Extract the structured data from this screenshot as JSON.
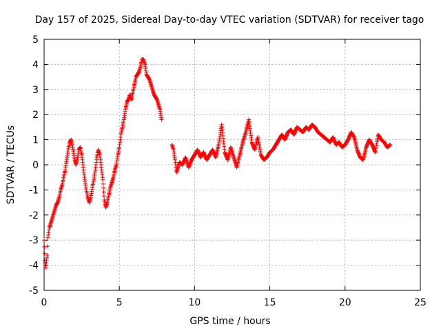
{
  "chart_data": {
    "type": "scatter",
    "title": "Day 157 of 2025, Sidereal Day-to-day VTEC variation (SDTVAR) for receiver tago",
    "xlabel": "GPS time / hours",
    "ylabel": "SDTVAR / TECUs",
    "xlim": [
      0,
      25
    ],
    "ylim": [
      -5,
      5
    ],
    "xticks": [
      0,
      5,
      10,
      15,
      20,
      25
    ],
    "yticks": [
      -5,
      -4,
      -3,
      -2,
      -1,
      0,
      1,
      2,
      3,
      4,
      5
    ],
    "xtick_labels": [
      "0",
      "5",
      "10",
      "15",
      "20",
      "25"
    ],
    "ytick_labels": [
      "-5",
      "-4",
      "-3",
      "-2",
      "-1",
      "0",
      "1",
      "2",
      "3",
      "4",
      "5"
    ],
    "grid": true,
    "marker": "+",
    "series_color": "#ff0000",
    "series": [
      {
        "name": "SDTVAR",
        "x": [
          0.0,
          0.05,
          0.1,
          0.15,
          0.2,
          0.25,
          0.3,
          0.35,
          0.4,
          0.5,
          0.6,
          0.7,
          0.8,
          0.9,
          1.0,
          1.1,
          1.2,
          1.3,
          1.4,
          1.5,
          1.6,
          1.7,
          1.8,
          1.9,
          2.0,
          2.1,
          2.2,
          2.3,
          2.4,
          2.5,
          2.6,
          2.7,
          2.8,
          2.9,
          3.0,
          3.1,
          3.2,
          3.3,
          3.4,
          3.5,
          3.6,
          3.7,
          3.8,
          3.9,
          4.0,
          4.1,
          4.2,
          4.3,
          4.4,
          4.5,
          4.6,
          4.7,
          4.8,
          4.9,
          5.0,
          5.1,
          5.2,
          5.3,
          5.4,
          5.5,
          5.6,
          5.7,
          5.8,
          5.9,
          6.0,
          6.1,
          6.2,
          6.3,
          6.4,
          6.5,
          6.6,
          6.7,
          6.8,
          6.9,
          7.0,
          7.1,
          7.2,
          7.3,
          7.4,
          7.5,
          7.6,
          7.7,
          7.8,
          8.5,
          8.6,
          8.7,
          8.8,
          8.9,
          9.0,
          9.2,
          9.4,
          9.6,
          9.8,
          10.0,
          10.2,
          10.4,
          10.6,
          10.8,
          11.0,
          11.2,
          11.4,
          11.6,
          11.8,
          12.0,
          12.2,
          12.4,
          12.6,
          12.8,
          13.0,
          13.2,
          13.4,
          13.6,
          13.8,
          14.0,
          14.2,
          14.4,
          14.6,
          14.8,
          15.0,
          15.2,
          15.4,
          15.6,
          15.8,
          16.0,
          16.2,
          16.4,
          16.6,
          16.8,
          17.0,
          17.2,
          17.4,
          17.6,
          17.8,
          18.0,
          18.2,
          18.4,
          18.6,
          18.8,
          19.0,
          19.2,
          19.4,
          19.6,
          19.8,
          20.0,
          20.2,
          20.4,
          20.6,
          20.8,
          21.0,
          21.2,
          21.4,
          21.6,
          21.8,
          22.0,
          22.2,
          22.4,
          22.6,
          22.8,
          23.0
        ],
        "y": [
          -3.0,
          -3.8,
          -4.1,
          -3.9,
          -3.6,
          -2.9,
          -2.7,
          -2.5,
          -2.4,
          -2.2,
          -2.0,
          -1.8,
          -1.6,
          -1.5,
          -1.3,
          -1.0,
          -0.8,
          -0.5,
          -0.2,
          0.2,
          0.6,
          0.9,
          1.0,
          0.7,
          0.3,
          0.0,
          0.2,
          0.6,
          0.7,
          0.4,
          -0.1,
          -0.6,
          -1.0,
          -1.3,
          -1.5,
          -1.3,
          -0.9,
          -0.6,
          -0.2,
          0.3,
          0.6,
          0.4,
          -0.1,
          -0.6,
          -1.4,
          -1.7,
          -1.5,
          -1.2,
          -0.9,
          -0.7,
          -0.5,
          -0.2,
          0.0,
          0.4,
          0.7,
          1.2,
          1.5,
          1.8,
          2.2,
          2.5,
          2.6,
          2.8,
          2.6,
          2.9,
          3.2,
          3.5,
          3.6,
          3.7,
          3.9,
          4.2,
          4.2,
          4.0,
          3.6,
          3.5,
          3.4,
          3.2,
          3.0,
          2.8,
          2.7,
          2.6,
          2.4,
          2.2,
          1.8,
          0.8,
          0.6,
          0.2,
          -0.3,
          -0.1,
          0.1,
          0.0,
          0.3,
          -0.1,
          0.2,
          0.4,
          0.6,
          0.3,
          0.5,
          0.2,
          0.4,
          0.6,
          0.3,
          0.8,
          1.6,
          0.5,
          0.2,
          0.7,
          0.3,
          -0.1,
          0.4,
          0.9,
          1.3,
          1.8,
          0.9,
          0.6,
          1.1,
          0.4,
          0.2,
          0.3,
          0.5,
          0.6,
          0.8,
          1.0,
          1.2,
          1.0,
          1.3,
          1.4,
          1.2,
          1.5,
          1.4,
          1.3,
          1.5,
          1.4,
          1.6,
          1.5,
          1.3,
          1.2,
          1.1,
          1.0,
          0.9,
          1.1,
          0.8,
          0.9,
          0.7,
          0.8,
          1.0,
          1.3,
          1.1,
          0.6,
          0.3,
          0.2,
          0.7,
          1.0,
          0.8,
          0.5,
          1.2,
          1.0,
          0.9,
          0.7,
          0.8
        ]
      }
    ]
  }
}
